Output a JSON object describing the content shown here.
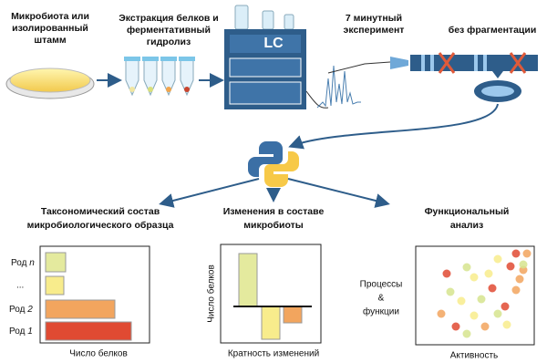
{
  "steps": [
    {
      "label": [
        "Микробиота или",
        "изолированный",
        "штамм"
      ]
    },
    {
      "label": [
        "Экстракция белков и",
        "ферментативный",
        "гидролиз"
      ]
    },
    {
      "label": [
        "LC"
      ]
    },
    {
      "label": [
        "7 минутный",
        "эксперимент"
      ]
    },
    {
      "label": [
        "без фрагментации"
      ]
    }
  ],
  "analyses": [
    {
      "title": [
        "Таксономический состав",
        "микробиологического образца"
      ],
      "rows": [
        {
          "label": "Род",
          "index": "n"
        },
        {
          "label": "..."
        },
        {
          "label": "Род",
          "index": "2"
        },
        {
          "label": "Род",
          "index": "1"
        }
      ],
      "x_label": "Число белков"
    },
    {
      "title": [
        "Изменения в составе",
        "микробиоты"
      ],
      "y_label": "Число белков",
      "x_label": "Кратность изменений"
    },
    {
      "title": [
        "Функциональный",
        "анализ"
      ],
      "y_label": [
        "Процессы",
        "&",
        "функции"
      ],
      "x_label": "Активность"
    }
  ]
}
